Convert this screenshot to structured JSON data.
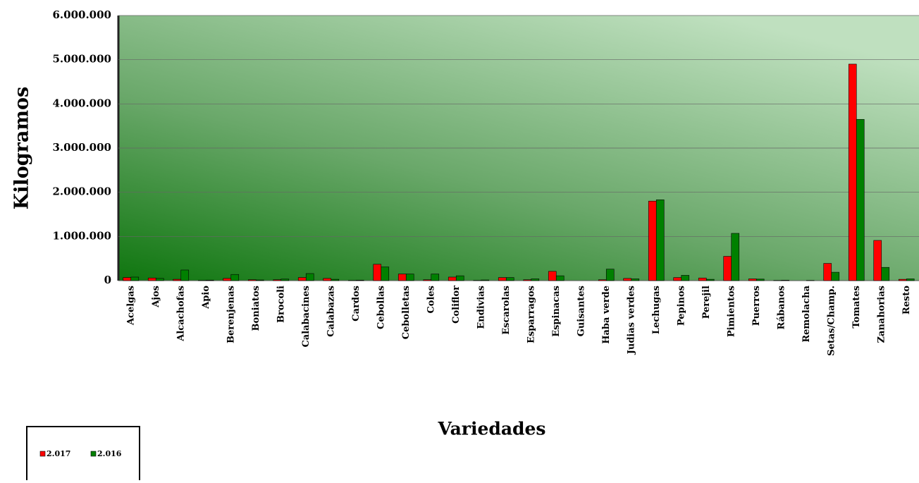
{
  "chart_data": {
    "type": "bar",
    "ylabel": "Kilogramos",
    "xlabel": "Variedades",
    "categories": [
      "Acelgas",
      "Ajos",
      "Alcachofas",
      "Apio",
      "Berenjenas",
      "Boniatos",
      "Brocoli",
      "Calabacines",
      "Calabazas",
      "Cardos",
      "Cebollas",
      "Cebolletas",
      "Coles",
      "Coliflor",
      "Endivias",
      "Escarolas",
      "Esparragos",
      "Espinacas",
      "Guisantes",
      "Haba verde",
      "Judias verdes",
      "Lechugas",
      "Pepinos",
      "Perejil",
      "Pimientos",
      "Puerros",
      "Rábanos",
      "Remolacha",
      "Setas/Champ.",
      "Tomates",
      "Zanahorias",
      "Resto"
    ],
    "series": [
      {
        "name": "2.017",
        "color": "#ff0000",
        "values": [
          70000,
          60000,
          30000,
          5000,
          50000,
          20000,
          20000,
          70000,
          50000,
          5000,
          370000,
          150000,
          20000,
          80000,
          5000,
          70000,
          20000,
          210000,
          0,
          20000,
          50000,
          1800000,
          70000,
          60000,
          550000,
          40000,
          5000,
          0,
          390000,
          4900000,
          910000,
          30000
        ]
      },
      {
        "name": "2.016",
        "color": "#008000",
        "values": [
          80000,
          50000,
          240000,
          10000,
          140000,
          15000,
          35000,
          160000,
          30000,
          10000,
          310000,
          150000,
          150000,
          110000,
          15000,
          70000,
          40000,
          110000,
          0,
          260000,
          40000,
          1830000,
          120000,
          30000,
          1070000,
          35000,
          10000,
          5000,
          190000,
          3650000,
          300000,
          40000
        ]
      }
    ],
    "ylim": [
      0,
      6000000
    ],
    "yticks": [
      0,
      {
        "value": 1000000,
        "label": "1.000.000"
      },
      {
        "value": 2000000,
        "label": "2.000.000"
      },
      {
        "value": 3000000,
        "label": "3.000.000"
      },
      {
        "value": 4000000,
        "label": "4.000.000"
      },
      {
        "value": 5000000,
        "label": "5.000.000"
      },
      {
        "value": 6000000,
        "label": "6.000.000"
      }
    ],
    "grid": true
  }
}
